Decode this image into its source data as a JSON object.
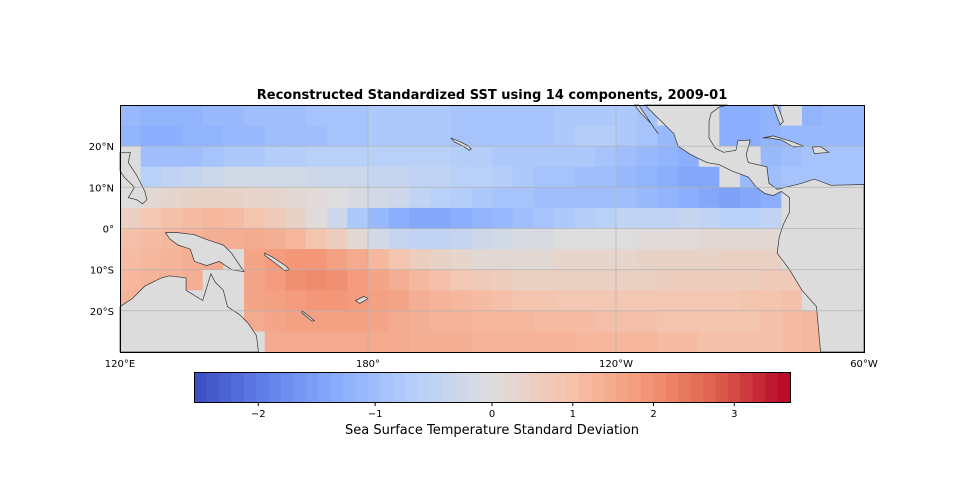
{
  "chart_data": {
    "type": "heatmap",
    "title": "Reconstructed Standardized SST using 14 components, 2009-01",
    "projection": "PlateCarree",
    "lon_range": [
      120,
      300
    ],
    "lat_range": [
      -30,
      30
    ],
    "grid": true,
    "x_ticks": [
      {
        "lon": 120,
        "label": "120°E"
      },
      {
        "lon": 180,
        "label": "180°"
      },
      {
        "lon": 240,
        "label": "120°W"
      },
      {
        "lon": 300,
        "label": "60°W"
      }
    ],
    "y_ticks": [
      {
        "lat": 20,
        "label": "20°N"
      },
      {
        "lat": 10,
        "label": "10°N"
      },
      {
        "lat": 0,
        "label": "0°"
      },
      {
        "lat": -10,
        "label": "10°S"
      },
      {
        "lat": -20,
        "label": "20°S"
      }
    ],
    "cell_deg": 5,
    "lat_centers": [
      27.5,
      22.5,
      17.5,
      12.5,
      7.5,
      2.5,
      -2.5,
      -7.5,
      -12.5,
      -17.5,
      -22.5,
      -27.5
    ],
    "lon_start": 120,
    "values": [
      [
        -1.1,
        -1.2,
        -1.2,
        -1.2,
        -1.1,
        -1.1,
        -1.0,
        -1.0,
        -1.0,
        -0.9,
        -0.9,
        -0.9,
        -0.8,
        -0.8,
        -0.8,
        -0.8,
        -0.9,
        -0.9,
        -0.9,
        -0.9,
        -0.9,
        -0.8,
        -0.8,
        -0.8,
        -0.8,
        -0.9,
        null,
        null,
        null,
        -1.3,
        -1.3,
        -1.2,
        null,
        -1.2,
        -1.1,
        -1.1
      ],
      [
        -1.2,
        -1.3,
        -1.3,
        -1.2,
        -1.2,
        -1.1,
        -1.1,
        -1.0,
        -1.0,
        -1.0,
        -0.9,
        -0.9,
        -0.8,
        -0.8,
        -0.8,
        -0.8,
        -0.9,
        -0.9,
        -0.9,
        -0.9,
        -0.9,
        -0.8,
        -0.7,
        -0.7,
        -0.8,
        -0.9,
        -1.1,
        null,
        null,
        -1.3,
        -1.3,
        -1.2,
        -1.1,
        -1.1,
        -1.1,
        -1.1
      ],
      [
        null,
        -1.0,
        -1.0,
        -1.0,
        -0.9,
        -0.8,
        -0.8,
        -0.7,
        -0.7,
        -0.6,
        -0.6,
        -0.6,
        -0.6,
        -0.6,
        -0.6,
        -0.6,
        -0.7,
        -0.7,
        -0.8,
        -0.8,
        -0.8,
        -0.8,
        -0.8,
        -0.9,
        -1.0,
        -1.1,
        -1.2,
        -1.3,
        null,
        null,
        null,
        -1.1,
        -1.0,
        -0.9,
        -0.9,
        -0.9
      ],
      [
        null,
        -0.6,
        -0.5,
        -0.4,
        -0.3,
        -0.2,
        -0.2,
        -0.2,
        -0.2,
        -0.3,
        -0.3,
        -0.3,
        -0.4,
        -0.4,
        -0.5,
        -0.5,
        -0.6,
        -0.6,
        -0.7,
        -0.8,
        -0.9,
        -0.9,
        -1.0,
        -1.0,
        -1.1,
        -1.2,
        -1.3,
        -1.4,
        -1.4,
        null,
        -1.1,
        -1.0,
        -0.9,
        -0.9,
        -0.9,
        -0.9
      ],
      [
        0.0,
        0.2,
        0.3,
        0.4,
        0.4,
        0.4,
        0.3,
        0.3,
        0.2,
        0.1,
        0.0,
        -0.1,
        -0.2,
        -0.3,
        -0.5,
        -0.6,
        -0.7,
        -0.8,
        -0.9,
        -0.9,
        -1.0,
        -1.0,
        -1.0,
        -1.0,
        -1.0,
        -1.1,
        -1.2,
        -1.3,
        -1.4,
        -1.5,
        -1.4,
        -1.3,
        null,
        null,
        null,
        null
      ],
      [
        0.5,
        0.8,
        1.0,
        1.1,
        1.2,
        1.1,
        0.9,
        0.7,
        0.4,
        0.1,
        -0.3,
        -0.8,
        -1.1,
        -1.3,
        -1.4,
        -1.4,
        -1.3,
        -1.2,
        -1.1,
        -1.0,
        -0.9,
        -0.8,
        -0.7,
        -0.6,
        -0.5,
        -0.5,
        -0.5,
        -0.4,
        -0.5,
        -0.6,
        -0.6,
        -0.5,
        null,
        null,
        null,
        null
      ],
      [
        1.0,
        1.1,
        1.2,
        1.3,
        1.4,
        1.4,
        1.5,
        1.4,
        1.2,
        0.9,
        0.6,
        0.2,
        -0.2,
        -0.4,
        -0.5,
        -0.5,
        -0.4,
        -0.3,
        -0.2,
        -0.1,
        -0.1,
        0.0,
        0.0,
        0.0,
        0.0,
        0.1,
        0.1,
        0.1,
        0.2,
        0.2,
        0.2,
        0.2,
        null,
        null,
        null,
        null
      ],
      [
        1.1,
        1.2,
        1.3,
        1.4,
        1.5,
        null,
        1.6,
        1.8,
        1.9,
        1.9,
        1.7,
        1.5,
        1.2,
        0.9,
        0.6,
        0.4,
        0.3,
        0.2,
        0.2,
        0.2,
        0.2,
        0.3,
        0.3,
        0.3,
        0.3,
        0.4,
        0.4,
        0.4,
        0.4,
        0.5,
        0.5,
        0.5,
        null,
        null,
        null,
        null
      ],
      [
        1.2,
        1.3,
        1.3,
        1.4,
        null,
        null,
        1.6,
        1.8,
        2.0,
        2.1,
        2.0,
        1.8,
        1.6,
        1.4,
        1.2,
        1.0,
        0.8,
        0.7,
        0.6,
        0.5,
        0.5,
        0.5,
        0.5,
        0.5,
        0.5,
        0.5,
        0.6,
        0.6,
        0.6,
        0.6,
        0.6,
        0.7,
        0.7,
        null,
        null,
        null
      ],
      [
        1.3,
        null,
        null,
        null,
        null,
        null,
        1.6,
        1.7,
        1.8,
        1.9,
        1.9,
        1.8,
        1.7,
        1.6,
        1.4,
        1.3,
        1.2,
        1.1,
        1.0,
        0.9,
        0.9,
        0.8,
        0.8,
        0.8,
        0.8,
        0.8,
        0.8,
        0.8,
        0.8,
        0.8,
        0.9,
        0.9,
        1.0,
        null,
        null,
        null
      ],
      [
        null,
        null,
        null,
        null,
        null,
        null,
        1.5,
        1.6,
        1.7,
        1.7,
        1.7,
        1.7,
        1.6,
        1.5,
        1.4,
        1.3,
        1.3,
        1.2,
        1.2,
        1.2,
        1.1,
        1.1,
        1.1,
        1.0,
        1.0,
        1.0,
        0.9,
        0.9,
        0.9,
        0.9,
        0.9,
        1.0,
        1.1,
        1.2,
        null,
        null
      ],
      [
        null,
        null,
        null,
        null,
        null,
        null,
        null,
        1.5,
        1.5,
        1.5,
        1.5,
        1.5,
        1.5,
        1.5,
        1.4,
        1.4,
        1.4,
        1.3,
        1.3,
        1.3,
        1.3,
        1.3,
        1.2,
        1.2,
        1.2,
        1.2,
        1.1,
        1.1,
        1.0,
        1.0,
        1.0,
        1.0,
        1.1,
        1.2,
        null,
        null
      ]
    ],
    "land_color": "#dcdcdc",
    "colormap": "coolwarm",
    "colorbar": {
      "label": "Sea Surface Temperature Standard Deviation",
      "vmin": -2.55,
      "vcenter": 0,
      "vmax": 3.69,
      "ticks": [
        {
          "value": -2,
          "label": "−2"
        },
        {
          "value": -1,
          "label": "−1"
        },
        {
          "value": 0,
          "label": "0"
        },
        {
          "value": 1,
          "label": "1"
        },
        {
          "value": 2,
          "label": "2"
        },
        {
          "value": 3,
          "label": "3"
        }
      ]
    }
  }
}
